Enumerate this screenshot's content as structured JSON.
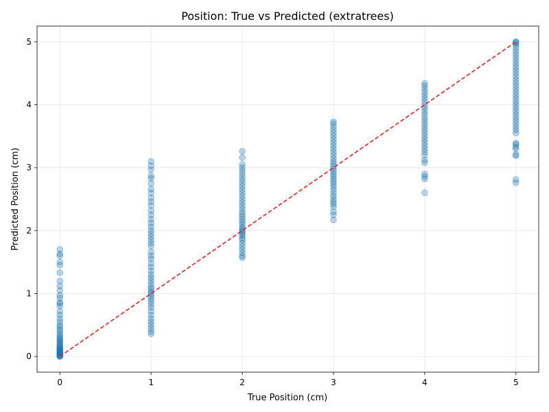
{
  "chart_data": {
    "type": "scatter",
    "title": "Position: True vs Predicted (extratrees)",
    "xlabel": "True Position (cm)",
    "ylabel": "Predicted Position (cm)",
    "xlim": [
      -0.25,
      5.25
    ],
    "ylim": [
      -0.25,
      5.25
    ],
    "xticks": [
      0,
      1,
      2,
      3,
      4,
      5
    ],
    "yticks": [
      0,
      1,
      2,
      3,
      4,
      5
    ],
    "grid": true,
    "series": [
      {
        "color": "#1f77b4",
        "points_by_x": [
          {
            "x": 0,
            "y": [
              0.0,
              0.0,
              0.01,
              0.02,
              0.02,
              0.03,
              0.04,
              0.05,
              0.05,
              0.06,
              0.07,
              0.08,
              0.09,
              0.1,
              0.1,
              0.12,
              0.13,
              0.15,
              0.16,
              0.18,
              0.2,
              0.22,
              0.24,
              0.26,
              0.28,
              0.3,
              0.33,
              0.36,
              0.4,
              0.43,
              0.47,
              0.5,
              0.55,
              0.6,
              0.66,
              0.72,
              0.8,
              0.84,
              0.86,
              0.93,
              0.97,
              1.05,
              1.12,
              1.2,
              1.33,
              1.45,
              1.5,
              1.6,
              1.63,
              1.7
            ]
          },
          {
            "x": 1,
            "y": [
              0.36,
              0.4,
              0.45,
              0.5,
              0.55,
              0.6,
              0.66,
              0.72,
              0.78,
              0.83,
              0.88,
              0.92,
              0.96,
              1.0,
              1.03,
              1.07,
              1.1,
              1.15,
              1.2,
              1.25,
              1.3,
              1.36,
              1.42,
              1.48,
              1.55,
              1.6,
              1.66,
              1.75,
              1.8,
              1.85,
              1.9,
              1.95,
              2.0,
              2.06,
              2.12,
              2.18,
              2.25,
              2.32,
              2.4,
              2.46,
              2.52,
              2.6,
              2.66,
              2.75,
              2.83,
              2.87,
              2.97,
              3.03,
              3.1
            ]
          },
          {
            "x": 2,
            "y": [
              1.57,
              1.6,
              1.65,
              1.7,
              1.75,
              1.8,
              1.85,
              1.88,
              1.92,
              1.95,
              1.98,
              2.0,
              2.03,
              2.06,
              2.1,
              2.14,
              2.18,
              2.22,
              2.26,
              2.3,
              2.35,
              2.4,
              2.45,
              2.5,
              2.55,
              2.6,
              2.65,
              2.7,
              2.75,
              2.8,
              2.85,
              2.9,
              2.95,
              3.0,
              3.05,
              3.16,
              3.26
            ]
          },
          {
            "x": 3,
            "y": [
              2.17,
              2.25,
              2.3,
              2.38,
              2.42,
              2.46,
              2.5,
              2.55,
              2.6,
              2.65,
              2.7,
              2.74,
              2.78,
              2.82,
              2.86,
              2.9,
              2.94,
              2.98,
              3.02,
              3.06,
              3.1,
              3.15,
              3.2,
              3.25,
              3.3,
              3.35,
              3.4,
              3.45,
              3.5,
              3.55,
              3.6,
              3.65,
              3.7,
              3.73
            ]
          },
          {
            "x": 4,
            "y": [
              2.6,
              2.82,
              2.86,
              2.9,
              3.08,
              3.12,
              3.2,
              3.25,
              3.3,
              3.35,
              3.4,
              3.45,
              3.5,
              3.55,
              3.6,
              3.65,
              3.7,
              3.75,
              3.8,
              3.85,
              3.9,
              3.95,
              4.0,
              4.05,
              4.1,
              4.15,
              4.2,
              4.25,
              4.3,
              4.34
            ]
          },
          {
            "x": 5,
            "y": [
              2.76,
              2.81,
              3.19,
              3.21,
              3.3,
              3.33,
              3.37,
              3.39,
              3.55,
              3.6,
              3.65,
              3.7,
              3.75,
              3.8,
              3.85,
              3.9,
              3.95,
              4.0,
              4.05,
              4.1,
              4.15,
              4.2,
              4.25,
              4.3,
              4.35,
              4.4,
              4.45,
              4.5,
              4.55,
              4.6,
              4.65,
              4.7,
              4.75,
              4.8,
              4.85,
              4.9,
              4.95,
              4.98,
              5.0,
              5.0
            ]
          }
        ]
      }
    ],
    "reference_line": {
      "x": [
        0,
        5
      ],
      "y": [
        0,
        5
      ],
      "color": "#e8201e",
      "style": "dashed"
    }
  }
}
